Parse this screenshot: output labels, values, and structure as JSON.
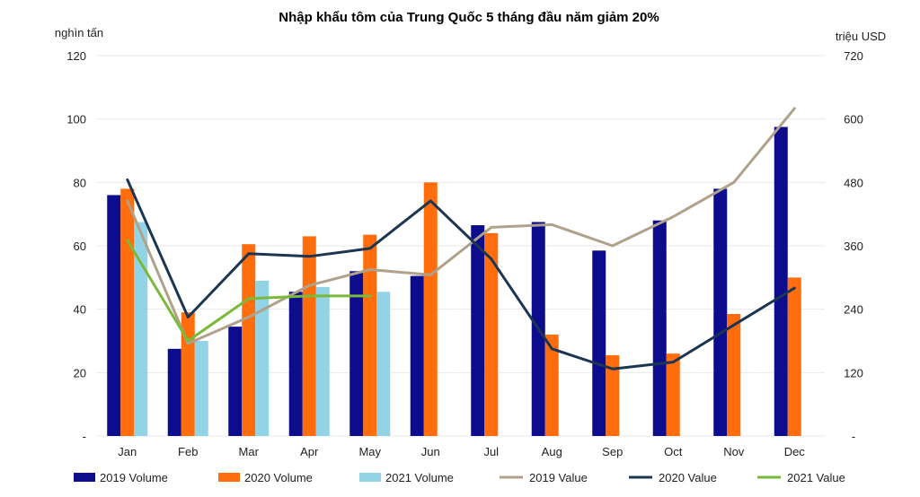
{
  "chart_data": {
    "type": "bar",
    "title": "Nhập khẩu tôm của Trung Quốc 5 tháng đầu năm giảm 20%",
    "ylabel_left": "nghìn tấn",
    "ylabel_right": "triệu USD",
    "categories": [
      "Jan",
      "Feb",
      "Mar",
      "Apr",
      "May",
      "Jun",
      "Jul",
      "Aug",
      "Sep",
      "Oct",
      "Nov",
      "Dec"
    ],
    "ylim_left": [
      0,
      120
    ],
    "ylim_right": [
      0,
      720
    ],
    "yticks_left": [
      "-",
      "20",
      "40",
      "60",
      "80",
      "100",
      "120"
    ],
    "yticks_right": [
      "-",
      "120",
      "240",
      "360",
      "480",
      "600",
      "720"
    ],
    "bar_series": [
      {
        "name": "2019 Volume",
        "color": "#0c0c8c",
        "values": [
          76,
          27.5,
          34.5,
          45.5,
          52,
          50.5,
          66.5,
          67.5,
          58.5,
          68,
          78,
          97.5
        ]
      },
      {
        "name": "2020 Volume",
        "color": "#ff6d0c",
        "values": [
          78,
          39,
          60.5,
          63,
          63.5,
          80,
          64,
          32,
          25.5,
          26,
          38.5,
          50
        ]
      },
      {
        "name": "2021 Volume",
        "color": "#93d3e6",
        "values": [
          67.5,
          30,
          49,
          47,
          45.5
        ]
      }
    ],
    "line_series": [
      {
        "name": "2019 Value",
        "color": "#b0a18a",
        "values": [
          445,
          175,
          225,
          285,
          315,
          305,
          395,
          400,
          360,
          415,
          480,
          620
        ]
      },
      {
        "name": "2020 Value",
        "color": "#1b3552",
        "values": [
          485,
          225,
          345,
          340,
          355,
          445,
          335,
          165,
          127,
          140,
          210,
          280
        ]
      },
      {
        "name": "2021 Value",
        "color": "#7ab93a",
        "values": [
          370,
          180,
          260,
          265,
          265
        ]
      }
    ],
    "legend": [
      "2019 Volume",
      "2020 Volume",
      "2021 Volume",
      "2019 Value",
      "2020 Value",
      "2021 Value"
    ],
    "legend_position": "bottom"
  }
}
